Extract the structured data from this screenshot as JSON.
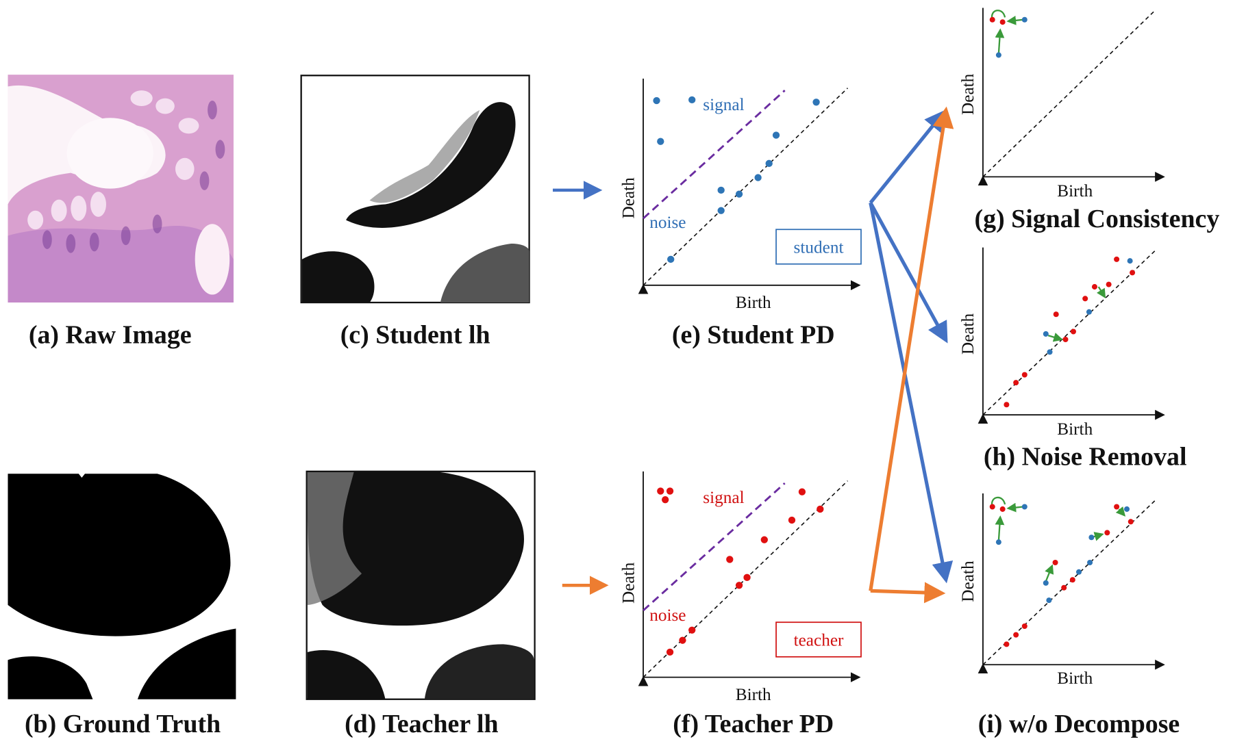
{
  "panels": {
    "raw_image": {
      "caption": "(a) Raw Image"
    },
    "ground_truth": {
      "caption": "(b) Ground Truth"
    },
    "student_lh": {
      "caption": "(c) Student lh"
    },
    "teacher_lh": {
      "caption": "(d) Teacher lh"
    },
    "student_pd": {
      "caption": "(e) Student PD",
      "x_label": "Birth",
      "y_label": "Death",
      "signal": "signal",
      "noise": "noise",
      "tag": "student"
    },
    "teacher_pd": {
      "caption": "(f) Teacher PD",
      "x_label": "Birth",
      "y_label": "Death",
      "signal": "signal",
      "noise": "noise",
      "tag": "teacher"
    },
    "signal_consistency": {
      "caption": "(g) Signal Consistency",
      "x_label": "Birth",
      "y_label": "Death"
    },
    "noise_removal": {
      "caption": "(h) Noise Removal",
      "x_label": "Birth",
      "y_label": "Death"
    },
    "wo_decompose": {
      "caption": "(i) w/o Decompose",
      "x_label": "Birth",
      "y_label": "Death"
    }
  }
}
